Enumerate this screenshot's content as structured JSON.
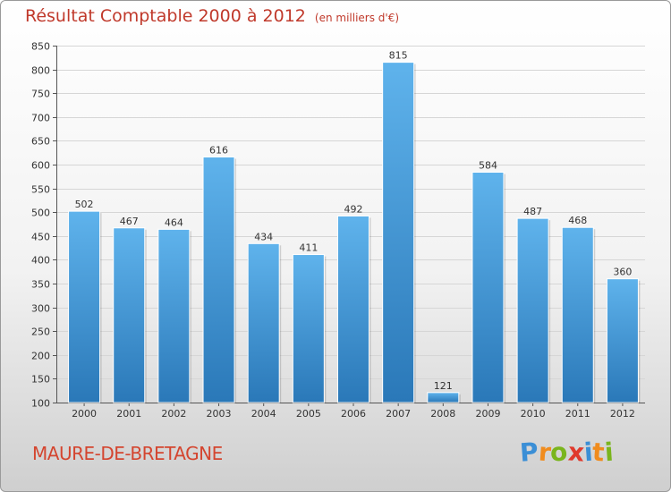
{
  "header": {
    "title": "Résultat Comptable 2000 à 2012",
    "unit": "(en milliers d'€)"
  },
  "commune": "MAURE-DE-BRETAGNE",
  "logo": {
    "text": "Proxiti",
    "letters": [
      "P",
      "r",
      "o",
      "x",
      "i",
      "t",
      "i"
    ],
    "letter_colors": [
      "#3b8fd6",
      "#f08c1e",
      "#7ab51d",
      "#e03a2c",
      "#3b8fd6",
      "#f08c1e",
      "#7ab51d"
    ]
  },
  "colors": {
    "bar_top": "#5fb3ec",
    "bar_bottom": "#2a78b8",
    "title": "#c0392b",
    "grid": "#d6d6d6"
  },
  "chart_data": {
    "type": "bar",
    "title": "Résultat Comptable 2000 à 2012",
    "subtitle": "(en milliers d'€)",
    "xlabel": "",
    "ylabel": "",
    "ylim": [
      100,
      850
    ],
    "yticks": [
      100,
      150,
      200,
      250,
      300,
      350,
      400,
      450,
      500,
      550,
      600,
      650,
      700,
      750,
      800,
      850
    ],
    "grid": true,
    "categories": [
      "2000",
      "2001",
      "2002",
      "2003",
      "2004",
      "2005",
      "2006",
      "2007",
      "2008",
      "2009",
      "2010",
      "2011",
      "2012"
    ],
    "values": [
      502,
      467,
      464,
      616,
      434,
      411,
      492,
      815,
      121,
      584,
      487,
      468,
      360
    ]
  }
}
